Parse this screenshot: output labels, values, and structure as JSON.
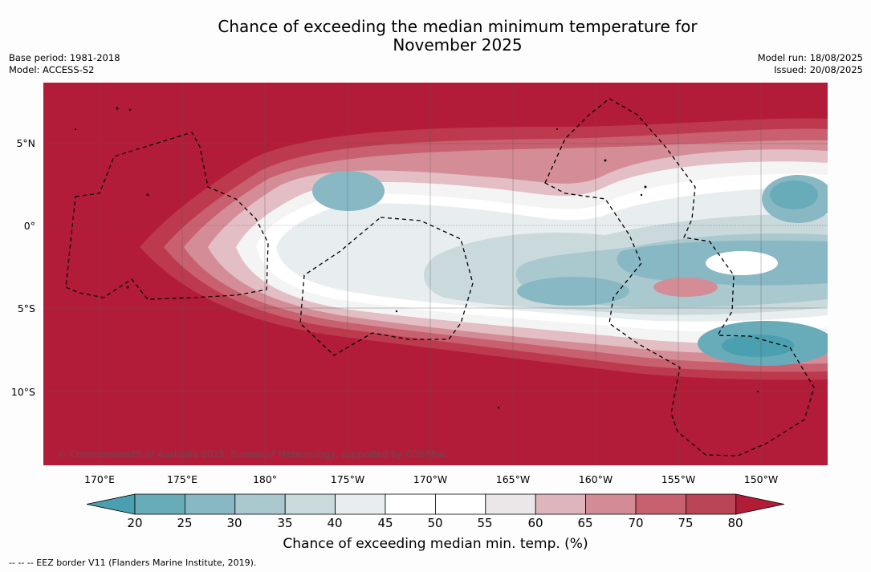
{
  "title_line1": "Chance of exceeding the median minimum temperature for",
  "title_line2": "November 2025",
  "base_period": "Base period: 1981-2018",
  "model": "Model: ACCESS-S2",
  "model_run": "Model run: 18/08/2025",
  "issued": "Issued: 20/08/2025",
  "copyright": "© Commonwealth of Australia 2025, Bureau of Meteorology, supported by COSPPac",
  "lat_labels": [
    "5°N",
    "0°",
    "5°S",
    "10°S"
  ],
  "lon_labels": [
    "170°E",
    "175°E",
    "180°",
    "175°W",
    "170°W",
    "165°W",
    "160°W",
    "155°W",
    "150°W"
  ],
  "colorbar": {
    "ticks": [
      "20",
      "25",
      "30",
      "35",
      "40",
      "45",
      "50",
      "55",
      "60",
      "65",
      "70",
      "75",
      "80"
    ],
    "colors": [
      "#4aa0b0",
      "#68abb9",
      "#87b8c3",
      "#a9c9cf",
      "#c9d9dc",
      "#e8eef0",
      "#ffffff",
      "#ffffff",
      "#ebe6e8",
      "#dfb5bd",
      "#d38c96",
      "#c76170",
      "#b94455",
      "#b31c38"
    ],
    "title": "Chance of exceeding median min. temp. (%)"
  },
  "footnote": "--  --  -- EEZ border V11 (Flanders Marine Institute, 2019).",
  "map_colors": {
    "background": "#b31c38"
  }
}
